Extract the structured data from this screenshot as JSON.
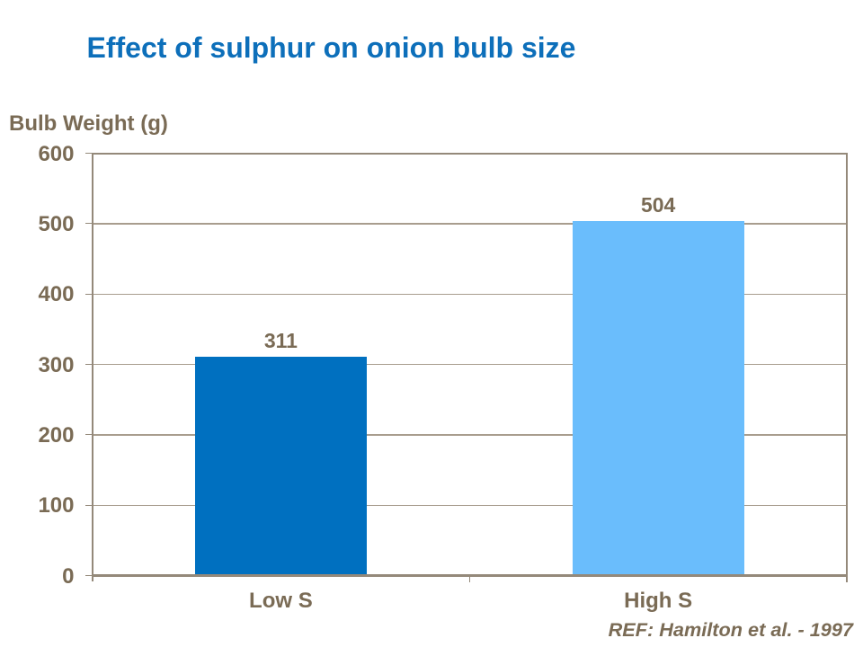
{
  "slide": {
    "background_color": "#ffffff"
  },
  "chart_data": {
    "type": "bar",
    "title": "Effect of sulphur on onion bulb size",
    "categories": [
      "Low S",
      "High S"
    ],
    "values": [
      311,
      504
    ],
    "bar_labels": [
      "311",
      "504"
    ],
    "xlabel": "",
    "ylabel": "Bulb Weight (g)",
    "ylim": [
      0,
      600
    ],
    "ytick_step": 100,
    "yticks": [
      "0",
      "100",
      "200",
      "300",
      "400",
      "500",
      "600"
    ],
    "grid": "horizontal-major",
    "legend": "none",
    "annotation": "REF: Hamilton et al. - 1997",
    "colors": {
      "title_text": "#0d6fba",
      "bars": [
        "#0070c0",
        "#6abdfc"
      ],
      "axis_text": "#7a6b55",
      "data_label_text": "#7a6b55",
      "annotation_text": "#7a6b55",
      "axis_line": "#94897a",
      "gridline": "#a89d8e",
      "background": "#ffffff"
    }
  }
}
